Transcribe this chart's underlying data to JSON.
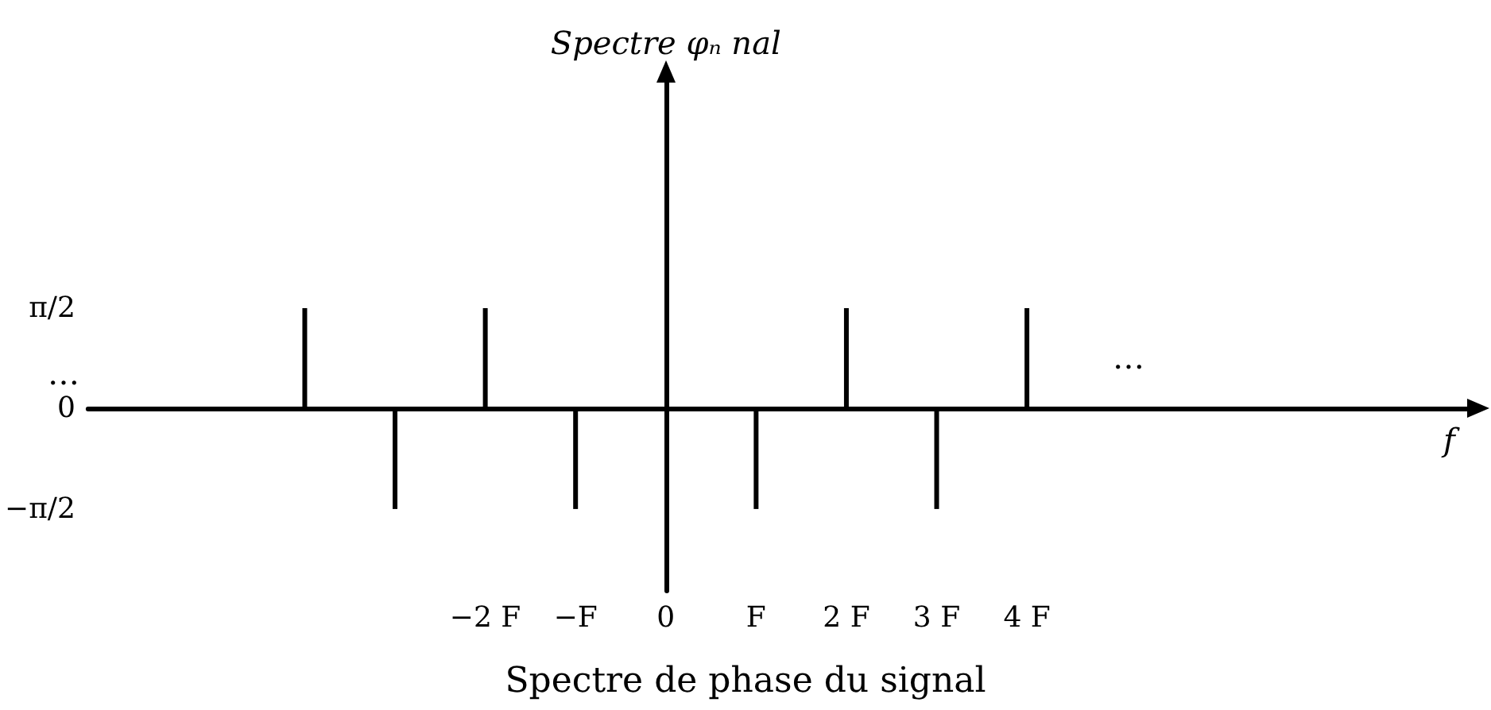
{
  "chart_data": {
    "type": "bar",
    "title": "Spectre de phase du signal",
    "ylabel": "Spectre φₙ nal",
    "xlabel": "f",
    "x": [
      -4,
      -3,
      -2,
      -1,
      1,
      2,
      3,
      4
    ],
    "values": [
      1.57,
      -1.57,
      1.57,
      -1.57,
      -1.57,
      1.57,
      -1.57,
      1.57
    ],
    "color": "#000000",
    "xlim": [
      -6.4,
      9
    ],
    "xticks": [
      {
        "value": -2,
        "label": "−2 F"
      },
      {
        "value": -1,
        "label": "−F"
      },
      {
        "value": 0,
        "label": "0"
      },
      {
        "value": 1,
        "label": "F"
      },
      {
        "value": 2,
        "label": "2 F"
      },
      {
        "value": 3,
        "label": "3 F"
      },
      {
        "value": 4,
        "label": "4 F"
      }
    ],
    "ylim": [
      -2.85,
      5.27
    ],
    "yticks": [
      {
        "value": -1.57,
        "label": "−π/2"
      },
      {
        "value": 0,
        "label": "0"
      },
      {
        "value": 1.57,
        "label": "π/2"
      }
    ],
    "annotations": [
      "…",
      "…"
    ]
  }
}
